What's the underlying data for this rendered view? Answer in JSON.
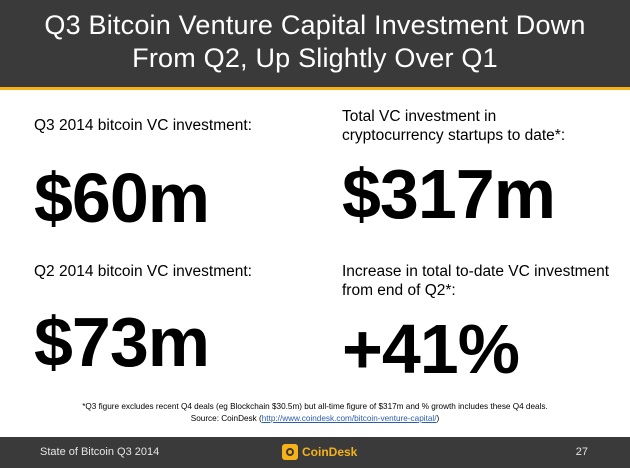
{
  "header": {
    "title_line1": "Q3 Bitcoin Venture Capital Investment Down",
    "title_line2": "From Q2, Up Slightly Over Q1"
  },
  "stats": {
    "q3": {
      "label_line1": "Q3 2014 bitcoin VC investment:",
      "value": "$60m"
    },
    "total": {
      "label_line1": "Total VC investment in",
      "label_line2": "cryptocurrency startups to date*:",
      "value": "$317m"
    },
    "q2": {
      "label_line1": "Q2 2014 bitcoin VC investment:",
      "value": "$73m"
    },
    "increase": {
      "label_line1": "Increase in total to-date VC investment",
      "label_line2": "from end of Q2*:",
      "value": "+41%"
    }
  },
  "footnote": {
    "line1": "*Q3 figure excludes recent Q4 deals (eg Blockchain $30.5m) but all-time figure of $317m and % growth includes these Q4 deals.",
    "source_prefix": "Source: CoinDesk (",
    "source_link": "http://www.coindesk.com/bitcoin-venture-capital/",
    "source_suffix": ")"
  },
  "footer": {
    "left_text": "State of Bitcoin Q3 2014",
    "logo_text": "CoinDesk",
    "page_number": "27"
  },
  "colors": {
    "header_bg": "#3a3a3a",
    "accent": "#f7b21a",
    "link": "#2a5db0"
  }
}
